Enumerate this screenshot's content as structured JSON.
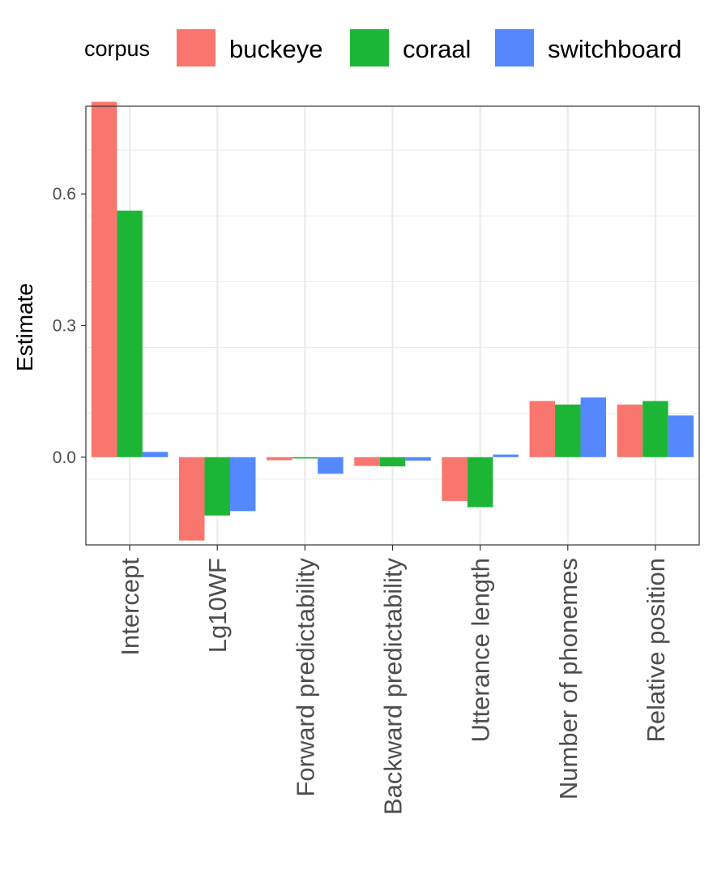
{
  "chart_data": {
    "type": "bar",
    "title": "",
    "xlabel": "",
    "ylabel": "Estimate",
    "ylim": [
      -0.2,
      0.8
    ],
    "yticks": [
      0.0,
      0.3,
      0.6
    ],
    "ytick_labels": [
      "0.0",
      "0.3",
      "0.6"
    ],
    "grid": true,
    "legend": {
      "title": "corpus",
      "position": "top"
    },
    "categories": [
      "Intercept",
      "Lg10WF",
      "Forward predictability",
      "Backward predictability",
      "Utterance length",
      "Number of phonemes",
      "Relative position"
    ],
    "series": [
      {
        "name": "buckeye",
        "color": "#F8766D",
        "values": [
          0.81,
          -0.19,
          -0.007,
          -0.02,
          -0.1,
          0.128,
          0.12
        ]
      },
      {
        "name": "coraal",
        "color": "#1DB536",
        "values": [
          0.562,
          -0.133,
          -0.003,
          -0.021,
          -0.114,
          0.12,
          0.128
        ]
      },
      {
        "name": "switchboard",
        "color": "#5588FF",
        "values": [
          0.012,
          -0.123,
          -0.038,
          -0.008,
          0.006,
          0.136,
          0.095
        ]
      }
    ]
  }
}
